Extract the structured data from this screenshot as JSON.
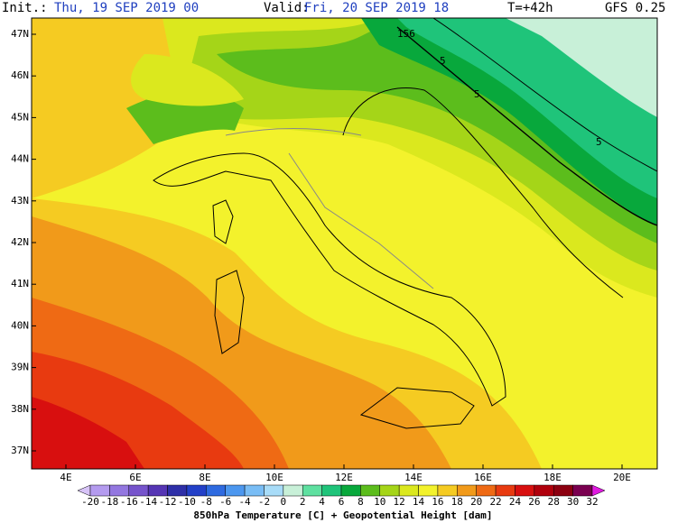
{
  "header": {
    "init_label": "Init.:",
    "init_time": "Thu, 19 SEP 2019  00",
    "valid_label": "Valid:",
    "valid_time": "Fri, 20 SEP 2019  18",
    "lead": "T=+42h",
    "model": "GFS 0.25"
  },
  "map": {
    "lat_labels": [
      "47N",
      "46N",
      "45N",
      "44N",
      "43N",
      "42N",
      "41N",
      "40N",
      "39N",
      "38N",
      "37N"
    ],
    "lon_labels": [
      "4E",
      "6E",
      "8E",
      "10E",
      "12E",
      "14E",
      "16E",
      "18E",
      "20E"
    ],
    "contour_labels": [
      "156",
      "5",
      "5",
      "5"
    ]
  },
  "colorbar": {
    "ticks": [
      -20,
      -18,
      -16,
      -14,
      -12,
      -10,
      -8,
      -6,
      -4,
      -2,
      0,
      2,
      4,
      6,
      8,
      10,
      12,
      14,
      16,
      18,
      20,
      22,
      24,
      26,
      28,
      30,
      32
    ],
    "colors": [
      "#d7c3f7",
      "#b49bef",
      "#9377e0",
      "#7654cc",
      "#5535b4",
      "#2e2fa8",
      "#2340c8",
      "#2e6ae0",
      "#4c97ef",
      "#79bdf5",
      "#a8dcf8",
      "#c8f0d8",
      "#5ee0a0",
      "#1fc47a",
      "#08a83c",
      "#5cbd1c",
      "#a5d518",
      "#dbe81e",
      "#f3f22c",
      "#f5cb22",
      "#f19a1a",
      "#ef6a14",
      "#e83a10",
      "#d80f0f",
      "#b0000c",
      "#8c0010",
      "#7a0050",
      "#a8009a",
      "#e01ae0"
    ],
    "title": "850hPa Temperature [C] + Geopotential Height [dam]"
  }
}
